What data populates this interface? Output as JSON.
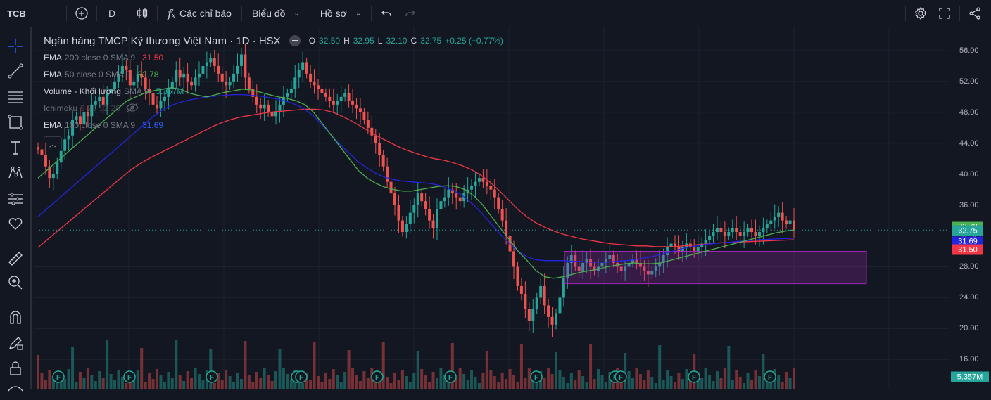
{
  "toolbar": {
    "symbol": "TCB",
    "interval": "D",
    "indicators_label": "Các chỉ báo",
    "chart_label": "Biểu đồ",
    "profile_label": "Hồ sơ"
  },
  "legend": {
    "title": "Ngân hàng TMCP Kỹ thương Việt Nam · 1D · HSX",
    "ohlc": {
      "o_label": "O",
      "o": "32.50",
      "h_label": "H",
      "h": "32.95",
      "l_label": "L",
      "l": "32.10",
      "c_label": "C",
      "c": "32.75",
      "change": "+0.25 (+0.77%)"
    },
    "indicators": [
      {
        "name": "EMA",
        "params": "200 close 0 SMA 9",
        "value": "31.50",
        "color": "#f23645"
      },
      {
        "name": "EMA",
        "params": "50 close 0 SMA 9",
        "value": "32.78",
        "color": "#4caf50"
      },
      {
        "name": "Volume - Khối lượng",
        "params": "SMA 9",
        "value": "5.357M",
        "color": "#26a69a"
      },
      {
        "name": "Ichimoku",
        "params": "9 26 52 26",
        "value": "",
        "color": "#787b86"
      },
      {
        "name": "EMA",
        "params": "100 close 0 SMA 9",
        "value": "31.69",
        "color": "#2962ff"
      }
    ]
  },
  "price_labels": [
    {
      "value": "32.78",
      "color": "#4caf50"
    },
    {
      "value": "32.75",
      "color": "#26a69a"
    },
    {
      "value": "31.69",
      "color": "#2424e0"
    },
    {
      "value": "31.50",
      "color": "#f23645"
    },
    {
      "value": "5.357M",
      "color": "#26a69a"
    }
  ],
  "chart_data": {
    "type": "candlestick",
    "y_ticks": [
      "56.00",
      "52.00",
      "48.00",
      "44.00",
      "40.00",
      "36.00",
      "32.00",
      "28.00",
      "24.00",
      "20.00",
      "16.00"
    ],
    "ylim": [
      12.2,
      59.0
    ],
    "close": [
      43.2,
      42.5,
      41.0,
      39.5,
      40.0,
      41.5,
      43.0,
      44.5,
      45.0,
      47.0,
      47.5,
      46.5,
      48.0,
      47.5,
      49.0,
      49.5,
      50.0,
      49.0,
      50.5,
      51.0,
      52.0,
      53.0,
      54.0,
      53.5,
      51.5,
      52.0,
      53.0,
      52.5,
      51.0,
      50.5,
      49.0,
      48.5,
      49.5,
      50.0,
      51.0,
      52.0,
      53.5,
      52.5,
      53.0,
      52.0,
      51.5,
      52.5,
      53.0,
      54.0,
      54.5,
      55.0,
      54.0,
      53.0,
      52.0,
      51.5,
      52.0,
      53.0,
      54.0,
      55.5,
      52.5,
      51.0,
      50.0,
      49.0,
      48.5,
      49.0,
      48.0,
      47.5,
      48.0,
      49.0,
      50.0,
      50.5,
      51.0,
      52.5,
      53.5,
      54.5,
      53.0,
      52.0,
      51.5,
      51.0,
      50.5,
      50.0,
      49.5,
      49.0,
      49.5,
      50.0,
      50.5,
      49.5,
      49.0,
      48.5,
      48.0,
      47.0,
      46.0,
      45.0,
      44.0,
      42.5,
      41.0,
      39.0,
      37.5,
      36.0,
      34.0,
      32.5,
      33.5,
      35.0,
      36.0,
      37.5,
      36.5,
      35.5,
      34.0,
      33.0,
      35.5,
      36.5,
      37.0,
      38.0,
      37.5,
      37.0,
      36.5,
      37.5,
      38.0,
      38.5,
      39.0,
      39.5,
      39.0,
      38.5,
      38.0,
      37.0,
      35.5,
      34.0,
      32.0,
      30.0,
      28.0,
      25.5,
      24.5,
      22.5,
      21.0,
      22.5,
      24.0,
      25.5,
      23.0,
      21.5,
      20.5,
      22.0,
      24.0,
      26.5,
      28.5,
      29.5,
      28.0,
      27.5,
      28.5,
      29.0,
      28.0,
      27.5,
      28.0,
      28.5,
      29.0,
      29.5,
      28.5,
      28.0,
      27.5,
      28.0,
      28.5,
      29.0,
      28.5,
      28.0,
      27.5,
      27.0,
      27.5,
      28.0,
      28.5,
      29.5,
      30.5,
      31.0,
      30.5,
      30.0,
      30.5,
      31.0,
      30.5,
      30.0,
      30.5,
      31.0,
      31.5,
      32.0,
      32.5,
      33.0,
      32.5,
      32.0,
      32.5,
      33.0,
      32.5,
      32.0,
      32.5,
      33.0,
      32.5,
      32.0,
      32.5,
      33.0,
      33.5,
      34.0,
      34.5,
      35.0,
      34.0,
      33.5,
      34.0,
      32.75
    ],
    "ema50": [
      39.5,
      40.5,
      41.5,
      42.5,
      43.5,
      44.5,
      45.5,
      46.5,
      47.5,
      48.5,
      49.5,
      50.0,
      50.5,
      50.8,
      51.0,
      51.2,
      51.0,
      50.5,
      50.2,
      50.0,
      50.3,
      50.6,
      50.8,
      51.0,
      50.9,
      50.6,
      50.3,
      50.0,
      49.8,
      49.5,
      49.0,
      48.0,
      46.5,
      45.0,
      43.5,
      42.0,
      40.5,
      39.5,
      38.8,
      38.3,
      38.0,
      37.8,
      37.8,
      38.0,
      38.2,
      38.4,
      38.5,
      38.4,
      38.0,
      37.2,
      36.0,
      34.5,
      33.0,
      31.5,
      30.0,
      28.8,
      27.5,
      26.7,
      26.5,
      26.7,
      27.0,
      27.3,
      27.5,
      27.7,
      28.0,
      28.2,
      28.4,
      28.5,
      28.4,
      28.4,
      28.5,
      28.8,
      29.1,
      29.4,
      29.7,
      30.0,
      30.3,
      30.6,
      30.9,
      31.2,
      31.5,
      31.8,
      32.1,
      32.4,
      32.6,
      32.78
    ],
    "ema100": [
      34.5,
      35.5,
      36.5,
      37.5,
      38.5,
      39.5,
      40.5,
      41.5,
      42.5,
      43.5,
      44.5,
      45.5,
      46.5,
      47.5,
      48.3,
      48.9,
      49.3,
      49.6,
      49.8,
      50.0,
      50.1,
      50.2,
      50.3,
      50.3,
      50.2,
      50.1,
      49.9,
      49.7,
      49.4,
      49.0,
      48.4,
      47.5,
      46.3,
      45.0,
      43.8,
      42.7,
      41.6,
      40.8,
      40.1,
      39.6,
      39.3,
      39.1,
      39.0,
      38.9,
      38.8,
      38.6,
      38.2,
      37.7,
      37.0,
      36.0,
      34.8,
      33.5,
      32.2,
      31.0,
      30.0,
      29.3,
      28.9,
      28.8,
      28.8,
      28.8,
      28.7,
      28.7,
      28.6,
      28.6,
      28.6,
      28.7,
      28.8,
      28.9,
      29.1,
      29.3,
      29.6,
      29.9,
      30.2,
      30.5,
      30.7,
      30.9,
      31.0,
      31.1,
      31.2,
      31.3,
      31.4,
      31.5,
      31.55,
      31.6,
      31.65,
      31.69
    ],
    "ema200": [
      30.5,
      31.5,
      32.5,
      33.5,
      34.5,
      35.5,
      36.5,
      37.5,
      38.5,
      39.5,
      40.5,
      41.3,
      42.0,
      42.6,
      43.2,
      43.8,
      44.4,
      45.0,
      45.6,
      46.2,
      46.7,
      47.1,
      47.4,
      47.6,
      47.8,
      48.0,
      48.1,
      48.2,
      48.3,
      48.4,
      48.4,
      48.3,
      48.0,
      47.5,
      46.9,
      46.2,
      45.5,
      44.8,
      44.2,
      43.6,
      43.1,
      42.7,
      42.3,
      42.0,
      41.8,
      41.5,
      41.1,
      40.6,
      39.9,
      39.0,
      37.9,
      36.7,
      35.5,
      34.5,
      33.7,
      33.1,
      32.6,
      32.2,
      31.9,
      31.6,
      31.4,
      31.2,
      31.0,
      30.9,
      30.8,
      30.7,
      30.7,
      30.6,
      30.6,
      30.6,
      30.7,
      30.8,
      30.9,
      31.0,
      31.1,
      31.15,
      31.2,
      31.25,
      31.3,
      31.35,
      31.4,
      31.45,
      31.5
    ],
    "volume_markers": [
      "F",
      "F",
      "F",
      "F",
      "F",
      "F",
      "F",
      "F",
      "F",
      "F",
      "F",
      "F",
      "F",
      "F"
    ],
    "rectangle": {
      "y_top": 30.0,
      "y_bottom": 25.8
    }
  },
  "colors": {
    "up": "#26a69a",
    "down": "#ef5350",
    "ema200": "#f23645",
    "ema50": "#4caf50",
    "ema100": "#2424e0",
    "rect_fill": "rgba(156,39,176,0.25)",
    "rect_stroke": "#9c27b0"
  }
}
